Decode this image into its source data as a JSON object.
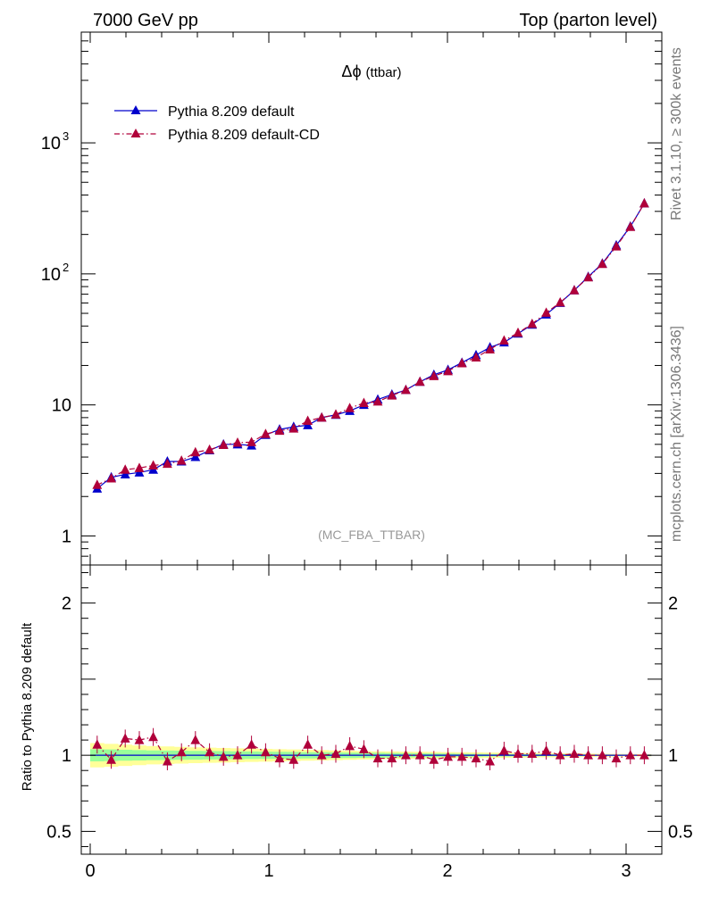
{
  "header": {
    "left": "7000 GeV pp",
    "right": "Top (parton level)"
  },
  "side_labels": {
    "rivet": "Rivet 3.1.10, ≥ 300k events",
    "mcplots": "mcplots.cern.ch [arXiv:1306.3436]"
  },
  "chart_data": {
    "type": "line",
    "title": "Δϕ (ttbar)",
    "title_symbol": "Δϕ",
    "title_suffix": "(ttbar)",
    "analysis_tag": "(MC_FBA_TTBAR)",
    "main": {
      "y_scale": "log",
      "ylim": [
        0.6,
        7000
      ],
      "y_ticks": [
        {
          "value": 1,
          "label": "1"
        },
        {
          "value": 10,
          "label": "10"
        },
        {
          "value": 100,
          "label": "10",
          "exp": "2"
        },
        {
          "value": 1000,
          "label": "10",
          "exp": "3"
        }
      ],
      "x": [
        0.039,
        0.118,
        0.196,
        0.275,
        0.353,
        0.432,
        0.511,
        0.589,
        0.668,
        0.746,
        0.825,
        0.903,
        0.982,
        1.06,
        1.139,
        1.218,
        1.296,
        1.375,
        1.453,
        1.532,
        1.61,
        1.689,
        1.767,
        1.846,
        1.924,
        2.003,
        2.081,
        2.16,
        2.238,
        2.317,
        2.395,
        2.474,
        2.553,
        2.631,
        2.71,
        2.788,
        2.867,
        2.945,
        3.024,
        3.102
      ],
      "series": [
        {
          "name": "Pythia 8.209 default",
          "color": "#0000cc",
          "marker": "triangle",
          "line_style": "solid",
          "values": [
            2.3,
            2.8,
            2.95,
            3.05,
            3.2,
            3.7,
            3.7,
            4.0,
            4.5,
            5.0,
            5.0,
            4.9,
            5.9,
            6.5,
            6.8,
            7.0,
            8.0,
            8.4,
            9.0,
            10.0,
            11.0,
            12.0,
            13.0,
            15.0,
            17.0,
            18.5,
            21.0,
            24.0,
            27.5,
            30.0,
            35.0,
            41.0,
            49.0,
            60.0,
            75.0,
            95.0,
            120.0,
            165.0,
            230.0,
            345.0
          ]
        },
        {
          "name": "Pythia 8.209 default-CD",
          "color": "#b0003a",
          "marker": "triangle",
          "line_style": "dash-dot",
          "values": [
            2.45,
            2.75,
            3.2,
            3.3,
            3.45,
            3.55,
            3.75,
            4.35,
            4.55,
            4.95,
            5.15,
            5.2,
            6.0,
            6.35,
            6.6,
            7.55,
            8.0,
            8.45,
            9.45,
            10.35,
            10.6,
            11.8,
            13.0,
            15.0,
            16.6,
            18.1,
            20.8,
            23.0,
            26.5,
            31.0,
            35.5,
            41.5,
            50.5,
            60.5,
            75.0,
            94.0,
            119.0,
            162.0,
            228.0,
            345.0
          ]
        }
      ]
    },
    "ratio": {
      "ylabel": "Ratio to Pythia 8.209 default",
      "ylim": [
        0.35,
        2.25
      ],
      "y_ticks": [
        {
          "value": 0.5,
          "label": "0.5"
        },
        {
          "value": 1,
          "label": "1"
        },
        {
          "value": 2,
          "label": "2"
        }
      ],
      "values": [
        1.07,
        0.97,
        1.11,
        1.1,
        1.12,
        0.96,
        1.02,
        1.1,
        1.02,
        0.99,
        1.0,
        1.07,
        1.02,
        0.98,
        0.97,
        1.07,
        1.0,
        1.01,
        1.06,
        1.04,
        0.98,
        0.98,
        1.0,
        1.0,
        0.97,
        0.99,
        0.99,
        0.98,
        0.96,
        1.03,
        1.01,
        1.01,
        1.03,
        1.0,
        1.01,
        1.0,
        1.0,
        0.98,
        1.0,
        1.0
      ],
      "band_yellow_half": [
        0.08,
        0.075,
        0.07,
        0.065,
        0.06,
        0.058,
        0.055,
        0.052,
        0.05,
        0.048,
        0.046,
        0.044,
        0.042,
        0.04,
        0.038,
        0.036,
        0.034,
        0.032,
        0.03,
        0.028,
        0.026,
        0.025,
        0.024,
        0.023,
        0.022,
        0.021,
        0.02,
        0.019,
        0.018,
        0.017,
        0.016,
        0.015,
        0.014,
        0.013,
        0.012,
        0.011,
        0.01,
        0.009,
        0.008,
        0.007
      ],
      "band_green_half": [
        0.04,
        0.038,
        0.036,
        0.034,
        0.032,
        0.031,
        0.03,
        0.029,
        0.028,
        0.027,
        0.026,
        0.025,
        0.024,
        0.023,
        0.022,
        0.021,
        0.02,
        0.019,
        0.018,
        0.017,
        0.016,
        0.015,
        0.014,
        0.013,
        0.012,
        0.011,
        0.01,
        0.009,
        0.008,
        0.008,
        0.007,
        0.007,
        0.006,
        0.006,
        0.005,
        0.005,
        0.004,
        0.004,
        0.003,
        0.003
      ]
    },
    "xlim": [
      -0.05,
      3.2
    ],
    "x_ticks": [
      {
        "value": 0,
        "label": "0"
      },
      {
        "value": 1,
        "label": "1"
      },
      {
        "value": 2,
        "label": "2"
      },
      {
        "value": 3,
        "label": "3"
      }
    ],
    "colors": {
      "band_yellow": "#ffff99",
      "band_green": "#99ff99"
    }
  }
}
